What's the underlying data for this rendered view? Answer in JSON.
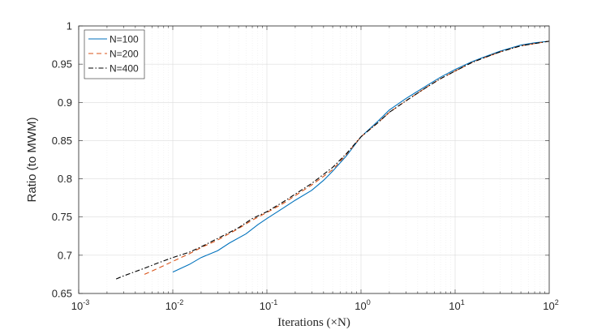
{
  "chart_data": {
    "type": "line",
    "xlabel": "Iterations (×N)",
    "ylabel": "Ratio (to MWM)",
    "xscale": "log",
    "xlim": [
      0.001,
      100
    ],
    "ylim": [
      0.65,
      1.0
    ],
    "grid": true,
    "legend_position": "top-left",
    "x_tick_labels": [
      {
        "base": "10",
        "exp": "-3"
      },
      {
        "base": "10",
        "exp": "-2"
      },
      {
        "base": "10",
        "exp": "-1"
      },
      {
        "base": "10",
        "exp": "0"
      },
      {
        "base": "10",
        "exp": "1"
      },
      {
        "base": "10",
        "exp": "2"
      }
    ],
    "y_tick_labels": [
      "0.65",
      "0.7",
      "0.75",
      "0.8",
      "0.85",
      "0.9",
      "0.95",
      "1"
    ],
    "series": [
      {
        "name": "N=100",
        "color": "#0072BD",
        "style": "solid",
        "points": [
          [
            0.01,
            0.678
          ],
          [
            0.015,
            0.688
          ],
          [
            0.02,
            0.697
          ],
          [
            0.03,
            0.706
          ],
          [
            0.04,
            0.716
          ],
          [
            0.06,
            0.728
          ],
          [
            0.08,
            0.74
          ],
          [
            0.1,
            0.748
          ],
          [
            0.15,
            0.762
          ],
          [
            0.2,
            0.772
          ],
          [
            0.3,
            0.785
          ],
          [
            0.4,
            0.798
          ],
          [
            0.5,
            0.81
          ],
          [
            0.7,
            0.83
          ],
          [
            1,
            0.855
          ],
          [
            1.5,
            0.875
          ],
          [
            2,
            0.89
          ],
          [
            3,
            0.905
          ],
          [
            5,
            0.922
          ],
          [
            7,
            0.933
          ],
          [
            10,
            0.943
          ],
          [
            15,
            0.953
          ],
          [
            20,
            0.959
          ],
          [
            30,
            0.967
          ],
          [
            50,
            0.975
          ],
          [
            70,
            0.978
          ],
          [
            100,
            0.98
          ]
        ]
      },
      {
        "name": "N=200",
        "color": "#D95319",
        "style": "dashed",
        "points": [
          [
            0.005,
            0.675
          ],
          [
            0.007,
            0.683
          ],
          [
            0.01,
            0.692
          ],
          [
            0.015,
            0.702
          ],
          [
            0.02,
            0.71
          ],
          [
            0.03,
            0.72
          ],
          [
            0.05,
            0.735
          ],
          [
            0.07,
            0.746
          ],
          [
            0.1,
            0.756
          ],
          [
            0.15,
            0.768
          ],
          [
            0.2,
            0.778
          ],
          [
            0.3,
            0.792
          ],
          [
            0.5,
            0.812
          ],
          [
            0.7,
            0.832
          ],
          [
            1,
            0.855
          ],
          [
            1.5,
            0.873
          ],
          [
            2,
            0.887
          ],
          [
            3,
            0.902
          ],
          [
            5,
            0.92
          ],
          [
            7,
            0.931
          ],
          [
            10,
            0.941
          ],
          [
            15,
            0.952
          ],
          [
            20,
            0.958
          ],
          [
            30,
            0.966
          ],
          [
            50,
            0.974
          ],
          [
            70,
            0.977
          ],
          [
            100,
            0.98
          ]
        ]
      },
      {
        "name": "N=400",
        "color": "#000000",
        "style": "dashdot",
        "points": [
          [
            0.0025,
            0.669
          ],
          [
            0.003,
            0.673
          ],
          [
            0.005,
            0.683
          ],
          [
            0.007,
            0.69
          ],
          [
            0.01,
            0.697
          ],
          [
            0.015,
            0.704
          ],
          [
            0.02,
            0.711
          ],
          [
            0.03,
            0.722
          ],
          [
            0.05,
            0.736
          ],
          [
            0.07,
            0.748
          ],
          [
            0.1,
            0.757
          ],
          [
            0.15,
            0.77
          ],
          [
            0.2,
            0.78
          ],
          [
            0.3,
            0.794
          ],
          [
            0.5,
            0.815
          ],
          [
            0.7,
            0.833
          ],
          [
            1,
            0.855
          ],
          [
            1.5,
            0.873
          ],
          [
            2,
            0.887
          ],
          [
            3,
            0.902
          ],
          [
            5,
            0.92
          ],
          [
            7,
            0.931
          ],
          [
            10,
            0.941
          ],
          [
            15,
            0.952
          ],
          [
            20,
            0.958
          ],
          [
            30,
            0.966
          ],
          [
            50,
            0.974
          ],
          [
            70,
            0.977
          ],
          [
            100,
            0.98
          ]
        ]
      }
    ]
  }
}
